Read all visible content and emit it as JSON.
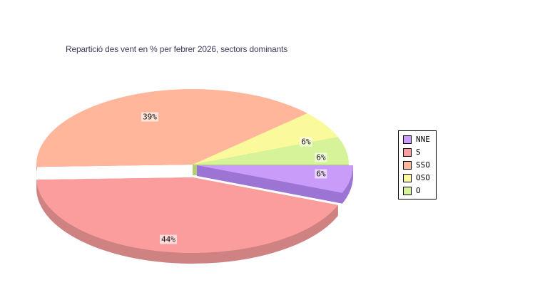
{
  "chart_data": {
    "type": "pie",
    "style": "3d-exploded-pie",
    "title": "Repartició des vent en % per febrer 2026, sectors dominants",
    "unit": "%",
    "categories": [
      "NNE",
      "S",
      "SSO",
      "OSO",
      "O"
    ],
    "values": [
      6,
      44,
      39,
      6,
      6
    ],
    "sectors": [
      {
        "name": "NNE",
        "value": 6,
        "pct_label": "6%",
        "color": "#C99CFA",
        "side_color": "#9C74D4",
        "exploded": true
      },
      {
        "name": "S",
        "value": 44,
        "pct_label": "44%",
        "color": "#FB9D9D",
        "side_color": "#CF8282",
        "exploded": true
      },
      {
        "name": "SSO",
        "value": 39,
        "pct_label": "39%",
        "color": "#FFB69B",
        "side_color": "#C98A6F",
        "exploded": false
      },
      {
        "name": "OSO",
        "value": 6,
        "pct_label": "6%",
        "color": "#FAFA9C",
        "side_color": "#D8D87E",
        "exploded": false
      },
      {
        "name": "O",
        "value": 6,
        "pct_label": "6%",
        "color": "#D6F399",
        "side_color": "#B2CE74",
        "exploded": false
      }
    ],
    "start_angle_deg": 0,
    "direction": "clockwise",
    "legend_position": "right",
    "legend_entries": [
      "NNE",
      "S",
      "SSO",
      "OSO",
      "O"
    ],
    "grid": false
  },
  "colors": {
    "background": "#FFFFFF",
    "title_text": "#3E3E5E",
    "label_text": "#141414",
    "label_background": "rgba(255,255,255,0.62)",
    "legend_border": "#000000",
    "legend_text": "#000000"
  }
}
